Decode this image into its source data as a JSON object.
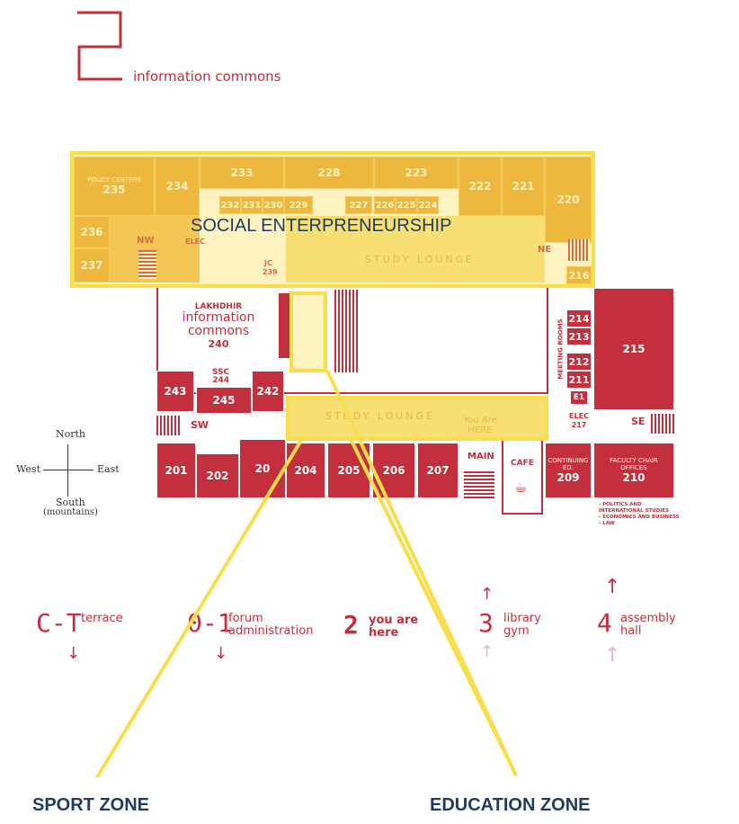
{
  "header": {
    "floor_digit": "2",
    "title": "information commons"
  },
  "rooms_north": [
    "235",
    "234",
    "233",
    "228",
    "223",
    "222",
    "221",
    "220",
    "236",
    "237",
    "216"
  ],
  "rooms_small": [
    "232",
    "231",
    "230",
    "229",
    "227",
    "226",
    "225",
    "224"
  ],
  "labels": {
    "policy_centers": "POLICY CENTERS",
    "nw": "NW",
    "stairs": "STAIRS",
    "ne": "NE",
    "elec": "ELEC",
    "jc": "JC",
    "r239": "239",
    "r236x": "236",
    "r230": "230",
    "study_lounge_top": "STUDY LOUNGE",
    "lakhdhir": "LAKHDHIR",
    "info_commons": "information commons",
    "r240": "240",
    "ssc": "SSC",
    "r244": "244",
    "study_lounge_mid": "STUDY LOUNGE",
    "you_are_here": "You Are HERE",
    "sw": "SW",
    "se": "SE",
    "main": "MAIN",
    "cafe": "CAFE",
    "continuing": "CONTINUING ED.",
    "faculty_chair": "FACULTY CHAIR OFFICES",
    "meeting_rooms": "MEETING ROOMS",
    "elec217": "ELEC 217",
    "e1": "E1"
  },
  "rooms_center": [
    "214",
    "213",
    "212",
    "211",
    "215",
    "243",
    "245",
    "242",
    "201",
    "202",
    "20",
    "204",
    "205",
    "206",
    "207",
    "209",
    "210"
  ],
  "departments": [
    "- POLITICS AND INTERNATIONAL STUDIES",
    "- ECONOMICS AND BUSINESS",
    "- LAW"
  ],
  "compass": {
    "north": "North",
    "south": "South",
    "south_note": "(mountains)",
    "west": "West",
    "east": "East"
  },
  "floors": {
    "ct": {
      "digit": "C-T",
      "text": "terrace"
    },
    "o1": {
      "digit": "0-1",
      "text1": "forum",
      "text2": "administration"
    },
    "f2": {
      "digit": "2",
      "text1": "you are",
      "text2": "here"
    },
    "f3": {
      "digit": "3",
      "text1": "library",
      "text2": "gym"
    },
    "f4": {
      "digit": "4",
      "text1": "assembly",
      "text2": "hall"
    }
  },
  "zones": {
    "social": "SOCIAL ENTERPRENEURSHIP",
    "sport": "SPORT ZONE",
    "education": "EDUCATION ZONE"
  },
  "colors": {
    "red": "#c32f3c",
    "orange": "#e8a337",
    "yellow": "#f9dd4a",
    "navy": "#1f3b5f"
  }
}
